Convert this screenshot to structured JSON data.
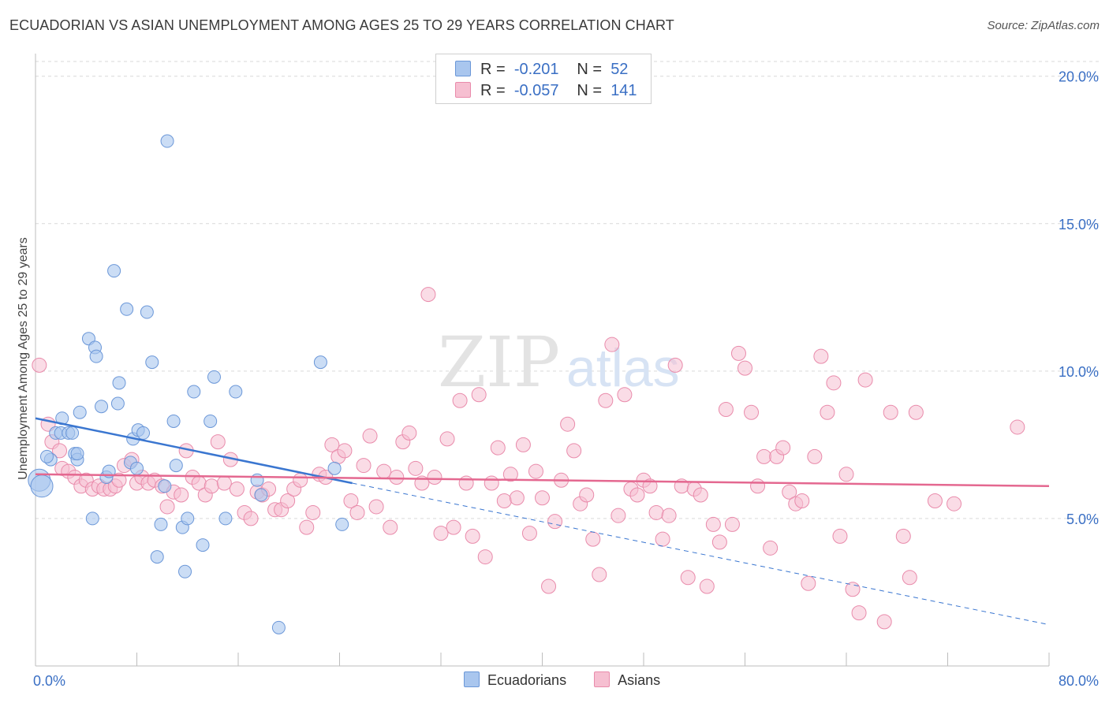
{
  "header": {
    "title": "ECUADORIAN VS ASIAN UNEMPLOYMENT AMONG AGES 25 TO 29 YEARS CORRELATION CHART",
    "source": "Source: ZipAtlas.com"
  },
  "watermark": {
    "zip": "ZIP",
    "atlas": "atlas"
  },
  "legend": {
    "rows": [
      {
        "r_label": "R =",
        "r_value": "-0.201",
        "n_label": "N =",
        "n_value": "52"
      },
      {
        "r_label": "R =",
        "r_value": "-0.057",
        "n_label": "N =",
        "n_value": "141"
      }
    ]
  },
  "colors": {
    "ecuadorians_fill": "#a9c6ee",
    "ecuadorians_stroke": "#6b97d8",
    "ecuadorians_line": "#3a76d0",
    "asians_fill": "#f6bfd1",
    "asians_stroke": "#e98bab",
    "asians_line": "#e46890",
    "tick_label": "#3a6fc4",
    "grid": "#d9d9d9"
  },
  "chart_data": {
    "type": "scatter",
    "title": "ECUADORIAN VS ASIAN UNEMPLOYMENT AMONG AGES 25 TO 29 YEARS CORRELATION CHART",
    "xlabel": "",
    "ylabel": "Unemployment Among Ages 25 to 29 years",
    "xlim": [
      0,
      80
    ],
    "ylim": [
      0,
      20.5
    ],
    "x_tick_labels": [
      "0.0%",
      "80.0%"
    ],
    "y_ticks": [
      5,
      10,
      15,
      20
    ],
    "y_tick_labels": [
      "5.0%",
      "10.0%",
      "15.0%",
      "20.0%"
    ],
    "grid": true,
    "legend_position": "bottom",
    "series": [
      {
        "name": "Ecuadorians",
        "r": -0.201,
        "n": 52,
        "trend": {
          "x0": 0,
          "y0": 8.4,
          "x1": 25,
          "y1": 6.2,
          "dash_x1": 80,
          "dash_y1": 1.4
        },
        "points": [
          [
            0.3,
            6.3
          ],
          [
            0.5,
            6.1
          ],
          [
            1.2,
            7.0
          ],
          [
            0.9,
            7.1
          ],
          [
            1.6,
            7.9
          ],
          [
            2.0,
            7.9
          ],
          [
            2.1,
            8.4
          ],
          [
            2.6,
            7.9
          ],
          [
            2.9,
            7.9
          ],
          [
            3.1,
            7.2
          ],
          [
            3.3,
            7.0
          ],
          [
            3.5,
            8.6
          ],
          [
            4.2,
            11.1
          ],
          [
            4.7,
            10.8
          ],
          [
            4.8,
            10.5
          ],
          [
            5.2,
            8.8
          ],
          [
            5.6,
            6.4
          ],
          [
            5.8,
            6.6
          ],
          [
            6.2,
            13.4
          ],
          [
            6.5,
            8.9
          ],
          [
            6.6,
            9.6
          ],
          [
            7.2,
            12.1
          ],
          [
            7.5,
            6.9
          ],
          [
            7.7,
            7.7
          ],
          [
            8.0,
            6.7
          ],
          [
            8.1,
            8.0
          ],
          [
            8.5,
            7.9
          ],
          [
            8.8,
            12.0
          ],
          [
            9.2,
            10.3
          ],
          [
            9.6,
            3.7
          ],
          [
            9.9,
            4.8
          ],
          [
            10.2,
            6.1
          ],
          [
            10.4,
            17.8
          ],
          [
            10.9,
            8.3
          ],
          [
            11.1,
            6.8
          ],
          [
            11.6,
            4.7
          ],
          [
            11.8,
            3.2
          ],
          [
            12.0,
            5.0
          ],
          [
            12.5,
            9.3
          ],
          [
            13.2,
            4.1
          ],
          [
            13.8,
            8.3
          ],
          [
            14.1,
            9.8
          ],
          [
            15.0,
            5.0
          ],
          [
            15.8,
            9.3
          ],
          [
            17.5,
            6.3
          ],
          [
            17.8,
            5.8
          ],
          [
            19.2,
            1.3
          ],
          [
            22.5,
            10.3
          ],
          [
            23.6,
            6.7
          ],
          [
            24.2,
            4.8
          ],
          [
            4.5,
            5.0
          ],
          [
            3.3,
            7.2
          ]
        ]
      },
      {
        "name": "Asians",
        "r": -0.057,
        "n": 141,
        "trend": {
          "x0": 0,
          "y0": 6.5,
          "x1": 80,
          "y1": 6.1
        },
        "points": [
          [
            0.3,
            10.2
          ],
          [
            1.0,
            8.2
          ],
          [
            1.3,
            7.6
          ],
          [
            1.9,
            7.3
          ],
          [
            2.1,
            6.7
          ],
          [
            2.6,
            6.6
          ],
          [
            3.1,
            6.4
          ],
          [
            3.6,
            6.1
          ],
          [
            4.0,
            6.3
          ],
          [
            4.5,
            6.0
          ],
          [
            5.0,
            6.1
          ],
          [
            5.4,
            6.0
          ],
          [
            5.9,
            6.0
          ],
          [
            6.3,
            6.1
          ],
          [
            6.6,
            6.3
          ],
          [
            7.0,
            6.8
          ],
          [
            7.6,
            7.0
          ],
          [
            8.0,
            6.2
          ],
          [
            8.4,
            6.4
          ],
          [
            8.9,
            6.2
          ],
          [
            9.4,
            6.3
          ],
          [
            10.0,
            6.1
          ],
          [
            10.4,
            5.4
          ],
          [
            10.9,
            5.9
          ],
          [
            11.5,
            5.8
          ],
          [
            11.9,
            7.3
          ],
          [
            12.4,
            6.4
          ],
          [
            12.9,
            6.2
          ],
          [
            13.4,
            5.8
          ],
          [
            13.9,
            6.1
          ],
          [
            14.4,
            7.6
          ],
          [
            14.9,
            6.2
          ],
          [
            15.4,
            7.0
          ],
          [
            15.9,
            6.0
          ],
          [
            16.5,
            5.2
          ],
          [
            17.0,
            5.0
          ],
          [
            17.5,
            5.9
          ],
          [
            17.9,
            5.8
          ],
          [
            18.4,
            6.0
          ],
          [
            18.9,
            5.3
          ],
          [
            19.4,
            5.3
          ],
          [
            19.9,
            5.6
          ],
          [
            20.4,
            6.0
          ],
          [
            20.9,
            6.3
          ],
          [
            21.4,
            4.7
          ],
          [
            21.9,
            5.2
          ],
          [
            22.4,
            6.5
          ],
          [
            22.9,
            6.4
          ],
          [
            23.4,
            7.5
          ],
          [
            23.9,
            7.1
          ],
          [
            24.4,
            7.3
          ],
          [
            24.9,
            5.6
          ],
          [
            25.4,
            5.2
          ],
          [
            25.9,
            6.8
          ],
          [
            26.4,
            7.8
          ],
          [
            26.9,
            5.4
          ],
          [
            27.5,
            6.6
          ],
          [
            28.0,
            4.7
          ],
          [
            28.5,
            6.4
          ],
          [
            29.0,
            7.6
          ],
          [
            29.5,
            7.9
          ],
          [
            30.0,
            6.7
          ],
          [
            30.5,
            6.2
          ],
          [
            31.0,
            12.6
          ],
          [
            31.5,
            6.4
          ],
          [
            32.0,
            4.5
          ],
          [
            32.5,
            7.7
          ],
          [
            33.0,
            4.7
          ],
          [
            33.5,
            9.0
          ],
          [
            34.0,
            6.2
          ],
          [
            34.5,
            4.4
          ],
          [
            35.0,
            9.2
          ],
          [
            35.5,
            3.7
          ],
          [
            36.0,
            6.2
          ],
          [
            36.5,
            7.4
          ],
          [
            37.0,
            5.6
          ],
          [
            37.5,
            6.5
          ],
          [
            38.0,
            5.7
          ],
          [
            38.5,
            7.5
          ],
          [
            39.0,
            4.5
          ],
          [
            39.5,
            6.6
          ],
          [
            40.0,
            5.7
          ],
          [
            40.5,
            2.7
          ],
          [
            41.0,
            4.9
          ],
          [
            41.5,
            6.3
          ],
          [
            42.0,
            8.2
          ],
          [
            42.5,
            7.3
          ],
          [
            43.0,
            5.5
          ],
          [
            43.5,
            5.8
          ],
          [
            44.0,
            4.3
          ],
          [
            44.5,
            3.1
          ],
          [
            45.0,
            9.0
          ],
          [
            45.5,
            10.9
          ],
          [
            46.0,
            5.1
          ],
          [
            46.5,
            9.2
          ],
          [
            47.0,
            6.0
          ],
          [
            47.5,
            5.8
          ],
          [
            48.0,
            6.3
          ],
          [
            48.5,
            6.1
          ],
          [
            49.0,
            5.2
          ],
          [
            49.5,
            4.3
          ],
          [
            50.0,
            5.1
          ],
          [
            50.5,
            10.2
          ],
          [
            51.0,
            6.1
          ],
          [
            51.5,
            3.0
          ],
          [
            52.0,
            6.0
          ],
          [
            52.5,
            5.8
          ],
          [
            53.0,
            2.7
          ],
          [
            53.5,
            4.8
          ],
          [
            54.0,
            4.2
          ],
          [
            54.5,
            8.7
          ],
          [
            55.0,
            4.8
          ],
          [
            55.5,
            10.6
          ],
          [
            56.0,
            10.1
          ],
          [
            56.5,
            8.6
          ],
          [
            57.0,
            6.1
          ],
          [
            57.5,
            7.1
          ],
          [
            58.0,
            4.0
          ],
          [
            58.5,
            7.1
          ],
          [
            59.0,
            7.4
          ],
          [
            59.5,
            5.9
          ],
          [
            60.0,
            5.5
          ],
          [
            60.5,
            5.6
          ],
          [
            61.0,
            2.8
          ],
          [
            61.5,
            7.1
          ],
          [
            62.0,
            10.5
          ],
          [
            62.5,
            8.6
          ],
          [
            63.0,
            9.6
          ],
          [
            63.5,
            4.4
          ],
          [
            64.0,
            6.5
          ],
          [
            64.5,
            2.6
          ],
          [
            65.0,
            1.8
          ],
          [
            65.5,
            9.7
          ],
          [
            67.0,
            1.5
          ],
          [
            67.5,
            8.6
          ],
          [
            68.5,
            4.4
          ],
          [
            69.0,
            3.0
          ],
          [
            69.5,
            8.6
          ],
          [
            71.0,
            5.6
          ],
          [
            72.5,
            5.5
          ],
          [
            77.5,
            8.1
          ]
        ]
      }
    ]
  },
  "bottom_legend": {
    "items": [
      "Ecuadorians",
      "Asians"
    ]
  }
}
